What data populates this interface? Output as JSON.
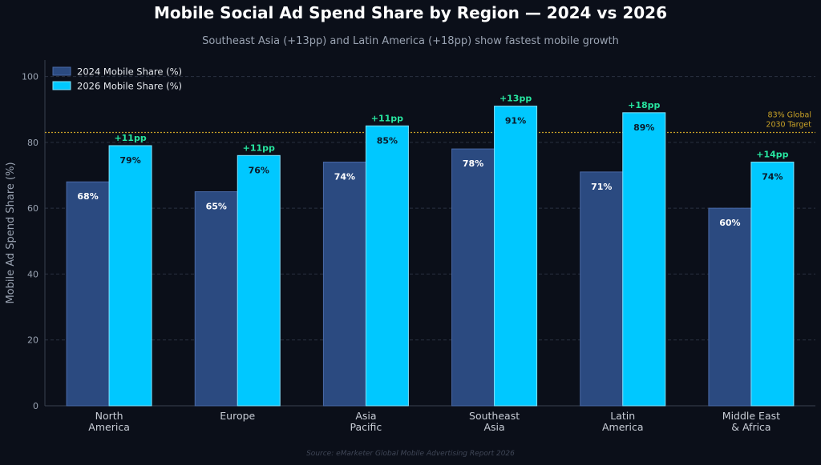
{
  "title": "Mobile Social Ad Spend Share by Region — 2024 vs 2026",
  "subtitle": "Southeast Asia (+13pp) and Latin America (+18pp) show fastest mobile growth",
  "source": "Source: eMarketer Global Mobile Advertising Report 2026",
  "colors": {
    "background": "#0b0f19",
    "bar_2024": "#2b4a80",
    "bar_2024_edge": "#4a6aa8",
    "bar_2026": "#00c8ff",
    "bar_2026_edge": "#7fe3ff",
    "delta_label": "#27e6a0",
    "target_line": "#c9a227",
    "grid": "#2a3040",
    "axis_text": "#9aa3b2"
  },
  "chart_data": {
    "type": "bar",
    "categories": [
      "North\nAmerica",
      "Europe",
      "Asia\nPacific",
      "Southeast\nAsia",
      "Latin\nAmerica",
      "Middle East\n& Africa"
    ],
    "series": [
      {
        "name": "2024 Mobile Share (%)",
        "values": [
          68,
          65,
          74,
          78,
          71,
          60
        ],
        "labels": [
          "68%",
          "65%",
          "74%",
          "78%",
          "71%",
          "60%"
        ]
      },
      {
        "name": "2026 Mobile Share (%)",
        "values": [
          79,
          76,
          85,
          91,
          89,
          74
        ],
        "labels": [
          "79%",
          "76%",
          "85%",
          "91%",
          "89%",
          "74%"
        ]
      }
    ],
    "delta_labels": [
      "+11pp",
      "+11pp",
      "+11pp",
      "+13pp",
      "+18pp",
      "+14pp"
    ],
    "reference_line": {
      "value": 83,
      "label": [
        "83% Global",
        "2030 Target"
      ]
    },
    "ylabel": "Mobile Ad Spend Share (%)",
    "xlabel": "",
    "ylim": [
      0,
      105
    ],
    "yticks": [
      0,
      20,
      40,
      60,
      80,
      100
    ],
    "grid": true,
    "legend_position": "top-left"
  }
}
